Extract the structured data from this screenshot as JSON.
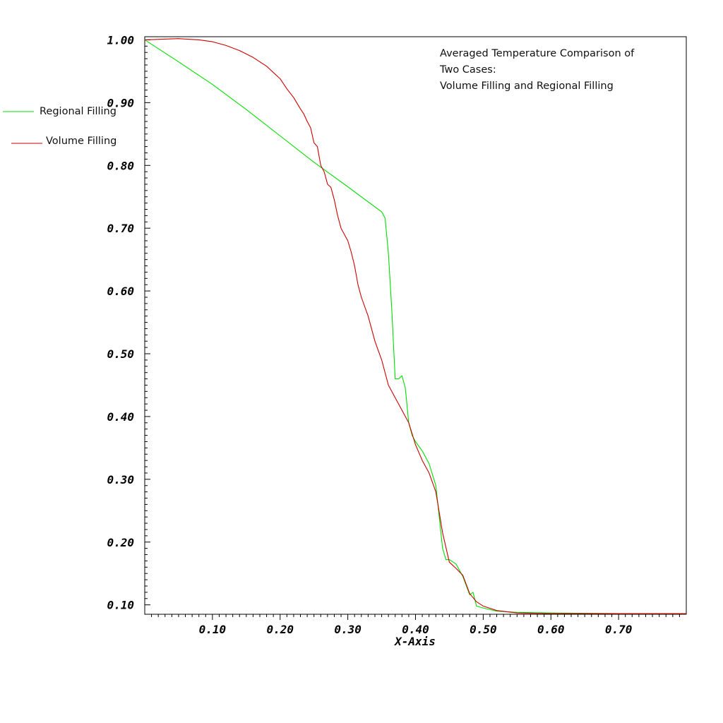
{
  "chart_data": {
    "type": "line",
    "title": "",
    "annotation": [
      "Averaged Temperature Comparison of",
      "Two Cases:",
      "Volume Filling and Regional Filling"
    ],
    "xlabel": "X-Axis",
    "ylabel": "",
    "xlim": [
      0.0,
      0.8
    ],
    "ylim": [
      0.085,
      1.005
    ],
    "x_ticks": [
      0.1,
      0.2,
      0.3,
      0.4,
      0.5,
      0.6,
      0.7
    ],
    "x_tick_labels": [
      "0.10",
      "0.20",
      "0.30",
      "0.40",
      "0.50",
      "0.60",
      "0.70"
    ],
    "y_ticks": [
      0.1,
      0.2,
      0.3,
      0.4,
      0.5,
      0.6,
      0.7,
      0.8,
      0.9,
      1.0
    ],
    "y_tick_labels": [
      "0.10",
      "0.20",
      "0.30",
      "0.40",
      "0.50",
      "0.60",
      "0.70",
      "0.80",
      "0.90",
      "1.00"
    ],
    "grid": false,
    "legend_position": "left",
    "series": [
      {
        "name": "Regional Filling",
        "color": "#00dd00",
        "x": [
          0.0,
          0.05,
          0.1,
          0.15,
          0.2,
          0.25,
          0.3,
          0.35,
          0.355,
          0.36,
          0.365,
          0.37,
          0.375,
          0.38,
          0.385,
          0.39,
          0.395,
          0.4,
          0.41,
          0.42,
          0.43,
          0.435,
          0.44,
          0.445,
          0.45,
          0.46,
          0.47,
          0.48,
          0.485,
          0.49,
          0.5,
          0.52,
          0.55,
          0.6,
          0.7,
          0.8
        ],
        "y": [
          1.0,
          0.965,
          0.929,
          0.889,
          0.847,
          0.805,
          0.766,
          0.726,
          0.716,
          0.66,
          0.57,
          0.46,
          0.46,
          0.465,
          0.445,
          0.39,
          0.37,
          0.36,
          0.345,
          0.325,
          0.29,
          0.24,
          0.19,
          0.172,
          0.172,
          0.165,
          0.145,
          0.116,
          0.12,
          0.098,
          0.095,
          0.09,
          0.088,
          0.087,
          0.086,
          0.086
        ]
      },
      {
        "name": "Volume Filling",
        "color": "#cc0000",
        "x": [
          0.0,
          0.05,
          0.08,
          0.1,
          0.12,
          0.14,
          0.16,
          0.18,
          0.19,
          0.2,
          0.21,
          0.22,
          0.23,
          0.235,
          0.24,
          0.245,
          0.25,
          0.255,
          0.26,
          0.265,
          0.27,
          0.275,
          0.28,
          0.285,
          0.29,
          0.3,
          0.305,
          0.31,
          0.315,
          0.32,
          0.33,
          0.34,
          0.35,
          0.36,
          0.37,
          0.38,
          0.39,
          0.4,
          0.41,
          0.42,
          0.43,
          0.44,
          0.45,
          0.46,
          0.47,
          0.48,
          0.49,
          0.5,
          0.52,
          0.55,
          0.6,
          0.7,
          0.8
        ],
        "y": [
          1.0,
          1.002,
          1.0,
          0.997,
          0.991,
          0.983,
          0.972,
          0.958,
          0.948,
          0.938,
          0.922,
          0.908,
          0.89,
          0.882,
          0.87,
          0.86,
          0.836,
          0.83,
          0.8,
          0.79,
          0.77,
          0.765,
          0.745,
          0.72,
          0.7,
          0.68,
          0.662,
          0.64,
          0.61,
          0.59,
          0.56,
          0.52,
          0.49,
          0.45,
          0.43,
          0.41,
          0.39,
          0.355,
          0.33,
          0.31,
          0.28,
          0.215,
          0.168,
          0.158,
          0.147,
          0.118,
          0.105,
          0.098,
          0.091,
          0.087,
          0.086,
          0.086,
          0.086
        ]
      }
    ]
  }
}
